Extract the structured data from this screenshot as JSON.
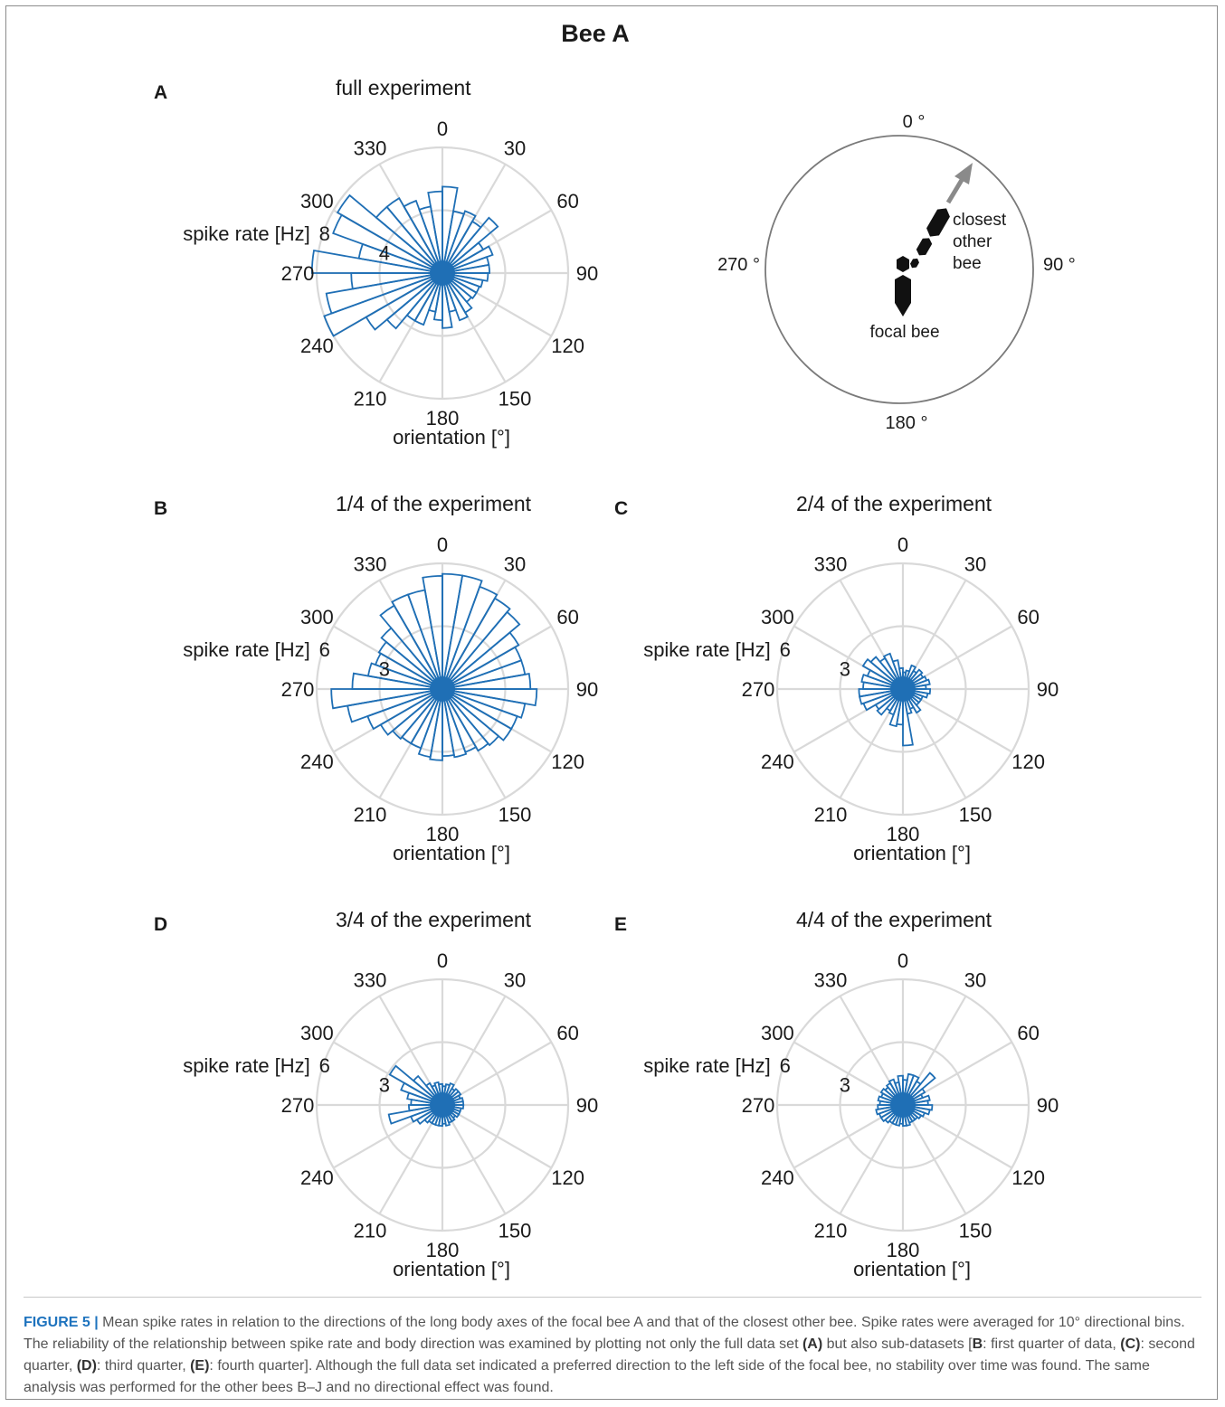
{
  "figure_title": "Bee A",
  "colors": {
    "bar": "#1f6fb5",
    "grid": "#d9d9d9",
    "text": "#1a1a1a",
    "arrow": "#8a8a8a"
  },
  "chart_data": [
    {
      "type": "polar-histogram",
      "panel_letter": "A",
      "title": "full experiment",
      "rlabel": "spike rate [Hz]",
      "xlabel": "orientation [°]",
      "rmax": 8,
      "rticks": [
        4,
        8
      ],
      "rtick_labels": [
        "4",
        "8"
      ],
      "angle_ticks": [
        "0",
        "30",
        "60",
        "90",
        "120",
        "150",
        "180",
        "210",
        "240",
        "270",
        "300",
        "330"
      ],
      "bin_width_deg": 10,
      "bin_centers_deg": [
        5,
        15,
        25,
        35,
        45,
        55,
        65,
        75,
        85,
        95,
        105,
        115,
        125,
        135,
        145,
        155,
        165,
        175,
        185,
        195,
        205,
        215,
        225,
        235,
        245,
        255,
        265,
        275,
        285,
        295,
        305,
        315,
        325,
        335,
        345,
        355
      ],
      "values": [
        5.5,
        4.0,
        4.2,
        3.8,
        4.6,
        3.0,
        3.4,
        3.0,
        3.0,
        2.9,
        2.6,
        2.5,
        2.5,
        2.4,
        2.9,
        3.2,
        2.5,
        3.5,
        3.0,
        2.5,
        3.5,
        3.5,
        4.6,
        5.6,
        8.0,
        7.5,
        5.8,
        8.3,
        5.4,
        7.4,
        7.7,
        5.5,
        5.5,
        4.9,
        4.3,
        5.2
      ]
    },
    {
      "type": "polar-histogram",
      "panel_letter": "B",
      "title": "1/4 of the experiment",
      "rlabel": "spike rate [Hz]",
      "xlabel": "orientation [°]",
      "rmax": 6,
      "rticks": [
        3,
        6
      ],
      "rtick_labels": [
        "3",
        "6"
      ],
      "angle_ticks": [
        "0",
        "30",
        "60",
        "90",
        "120",
        "150",
        "180",
        "210",
        "240",
        "270",
        "300",
        "330"
      ],
      "bin_width_deg": 10,
      "bin_centers_deg": [
        5,
        15,
        25,
        35,
        45,
        55,
        65,
        75,
        85,
        95,
        105,
        115,
        125,
        135,
        145,
        155,
        165,
        175,
        185,
        195,
        205,
        215,
        225,
        235,
        245,
        255,
        265,
        275,
        285,
        295,
        305,
        315,
        325,
        335,
        345,
        355
      ],
      "values": [
        5.5,
        5.5,
        5.2,
        5.0,
        4.8,
        4.2,
        4.0,
        4.0,
        4.2,
        4.5,
        4.0,
        3.8,
        3.8,
        3.5,
        3.4,
        3.2,
        3.3,
        3.2,
        3.4,
        3.3,
        3.0,
        3.0,
        3.1,
        3.4,
        3.8,
        4.6,
        5.3,
        4.3,
        3.6,
        3.4,
        3.5,
        3.8,
        4.6,
        4.8,
        4.8,
        5.4
      ]
    },
    {
      "type": "polar-histogram",
      "panel_letter": "C",
      "title": "2/4 of the experiment",
      "rlabel": "spike rate [Hz]",
      "xlabel": "orientation [°]",
      "rmax": 6,
      "rticks": [
        3,
        6
      ],
      "rtick_labels": [
        "3",
        "6"
      ],
      "angle_ticks": [
        "0",
        "30",
        "60",
        "90",
        "120",
        "150",
        "180",
        "210",
        "240",
        "270",
        "300",
        "330"
      ],
      "bin_width_deg": 10,
      "bin_centers_deg": [
        5,
        15,
        25,
        35,
        45,
        55,
        65,
        75,
        85,
        95,
        105,
        115,
        125,
        135,
        145,
        155,
        165,
        175,
        185,
        195,
        205,
        215,
        225,
        235,
        245,
        255,
        265,
        275,
        285,
        295,
        305,
        315,
        325,
        335,
        345,
        355
      ],
      "values": [
        0.8,
        0.9,
        1.2,
        1.0,
        1.2,
        1.1,
        1.2,
        1.3,
        1.1,
        1.3,
        1.2,
        1.0,
        1.0,
        1.0,
        1.3,
        1.0,
        1.2,
        2.7,
        1.7,
        1.8,
        1.3,
        1.2,
        1.6,
        1.5,
        2.0,
        2.1,
        2.1,
        1.9,
        2.0,
        1.8,
        2.2,
        2.0,
        1.7,
        1.8,
        1.4,
        1.0
      ]
    },
    {
      "type": "polar-histogram",
      "panel_letter": "D",
      "title": "3/4 of the experiment",
      "rlabel": "spike rate [Hz]",
      "xlabel": "orientation [°]",
      "rmax": 6,
      "rticks": [
        3,
        6
      ],
      "rtick_labels": [
        "3",
        "6"
      ],
      "angle_ticks": [
        "0",
        "30",
        "60",
        "90",
        "120",
        "150",
        "180",
        "210",
        "240",
        "270",
        "300",
        "330"
      ],
      "bin_width_deg": 10,
      "bin_centers_deg": [
        5,
        15,
        25,
        35,
        45,
        55,
        65,
        75,
        85,
        95,
        105,
        115,
        125,
        135,
        145,
        155,
        165,
        175,
        185,
        195,
        205,
        215,
        225,
        235,
        245,
        255,
        265,
        275,
        285,
        295,
        305,
        315,
        325,
        335,
        345,
        355
      ],
      "values": [
        0.9,
        1.0,
        1.1,
        0.9,
        1.0,
        1.0,
        0.9,
        1.0,
        1.0,
        1.0,
        0.9,
        0.9,
        0.9,
        0.8,
        0.9,
        0.9,
        1.0,
        0.9,
        1.0,
        1.0,
        1.0,
        1.0,
        1.1,
        1.4,
        1.6,
        2.6,
        1.6,
        1.5,
        1.7,
        2.1,
        2.9,
        1.8,
        1.2,
        1.0,
        1.1,
        1.0
      ]
    },
    {
      "type": "polar-histogram",
      "panel_letter": "E",
      "title": "4/4 of the experiment",
      "rlabel": "spike rate [Hz]",
      "xlabel": "orientation [°]",
      "rmax": 6,
      "rticks": [
        3,
        6
      ],
      "rtick_labels": [
        "3",
        "6"
      ],
      "angle_ticks": [
        "0",
        "30",
        "60",
        "90",
        "120",
        "150",
        "180",
        "210",
        "240",
        "270",
        "300",
        "330"
      ],
      "bin_width_deg": 10,
      "bin_centers_deg": [
        5,
        15,
        25,
        35,
        45,
        55,
        65,
        75,
        85,
        95,
        105,
        115,
        125,
        135,
        145,
        155,
        165,
        175,
        185,
        195,
        205,
        215,
        225,
        235,
        245,
        255,
        265,
        275,
        285,
        295,
        305,
        315,
        325,
        335,
        345,
        355
      ],
      "values": [
        1.2,
        1.5,
        1.5,
        1.3,
        2.0,
        1.2,
        1.0,
        1.3,
        1.2,
        1.4,
        1.3,
        1.1,
        1.0,
        0.9,
        0.9,
        0.9,
        1.0,
        1.0,
        0.9,
        1.0,
        1.0,
        1.0,
        1.1,
        1.2,
        1.2,
        1.3,
        1.2,
        1.1,
        1.2,
        1.1,
        1.2,
        1.1,
        1.2,
        1.3,
        1.1,
        1.4
      ]
    }
  ],
  "diagram": {
    "labels": {
      "top": "0 °",
      "right": "90 °",
      "bottom": "180 °",
      "left": "270 °",
      "other_bee": [
        "closest",
        "other",
        "bee"
      ],
      "focal_bee": "focal bee"
    }
  },
  "caption": {
    "figure_label": "FIGURE 5",
    "separator": "|",
    "text_1": " Mean spike rates in relation to the directions of the long body axes of the focal bee A and that of the closest other bee. Spike rates were averaged for 10° directional bins. The reliability of the relationship between spike rate and body direction was examined by plotting not only the full data set ",
    "ref_a": "(A)",
    "text_2": " but also sub-datasets [",
    "ref_b": "B",
    "text_3": ": first quarter of data, ",
    "ref_c": "(C)",
    "text_4": ": second quarter, ",
    "ref_d": "(D)",
    "text_5": ": third quarter, ",
    "ref_e": "(E)",
    "text_6": ": fourth quarter]. Although the full data set indicated a preferred direction to the left side of the focal bee, no stability over time was found. The same analysis was performed for the other bees B–J and no directional effect was found."
  }
}
